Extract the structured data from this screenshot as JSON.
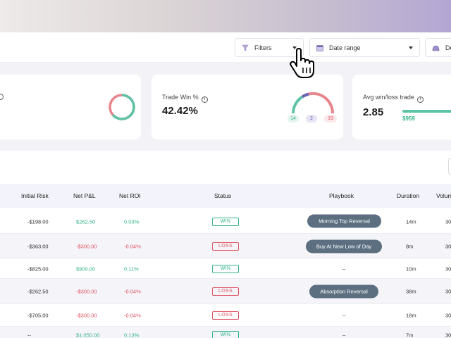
{
  "toolbar": {
    "filters_label": "Filters",
    "date_range_label": "Date range",
    "third_label": "Den"
  },
  "cards": {
    "trade_win": {
      "label": "Trade Win %",
      "value": "42.42%",
      "wins": "14",
      "breakeven": "2",
      "losses": "19"
    },
    "avg_win_loss": {
      "label": "Avg win/loss trade",
      "value": "2.85",
      "avg_win": "$959"
    }
  },
  "table": {
    "columns": [
      "Initial Risk",
      "Net P&L",
      "Net ROI",
      "Status",
      "Playbook",
      "Duration",
      "Volum"
    ],
    "rows": [
      {
        "initial_risk": "-$198.00",
        "net_pnl": "$262.50",
        "net_roi": "0.03%",
        "status": "WIN",
        "playbook": "Morning Top Reversal",
        "duration": "14m",
        "volume": "30"
      },
      {
        "initial_risk": "-$363.00",
        "net_pnl": "-$300.00",
        "net_roi": "-0.04%",
        "status": "LOSS",
        "playbook": "Buy At New Low of Day",
        "duration": "8m",
        "volume": "30"
      },
      {
        "initial_risk": "-$825.00",
        "net_pnl": "$900.00",
        "net_roi": "0.11%",
        "status": "WIN",
        "playbook": "–",
        "duration": "10m",
        "volume": "30"
      },
      {
        "initial_risk": "-$262.50",
        "net_pnl": "-$300.00",
        "net_roi": "-0.04%",
        "status": "LOSS",
        "playbook": "Absorption Reversal",
        "duration": "38m",
        "volume": "30"
      },
      {
        "initial_risk": "-$705.00",
        "net_pnl": "-$300.00",
        "net_roi": "-0.04%",
        "status": "LOSS",
        "playbook": "–",
        "duration": "18m",
        "volume": "30"
      },
      {
        "initial_risk": "--",
        "net_pnl": "$1,050.00",
        "net_roi": "0.13%",
        "status": "WIN",
        "playbook": "–",
        "duration": "7m",
        "volume": "30"
      }
    ]
  },
  "colors": {
    "win": "#34b389",
    "loss": "#e05360",
    "playbook_pill": "#5b6f80",
    "header_bg": "#f3f4fb"
  },
  "icons": {
    "filter": "filter-icon",
    "calendar": "calendar-icon",
    "info": "info-icon",
    "cursor": "hand-pointer-icon"
  }
}
